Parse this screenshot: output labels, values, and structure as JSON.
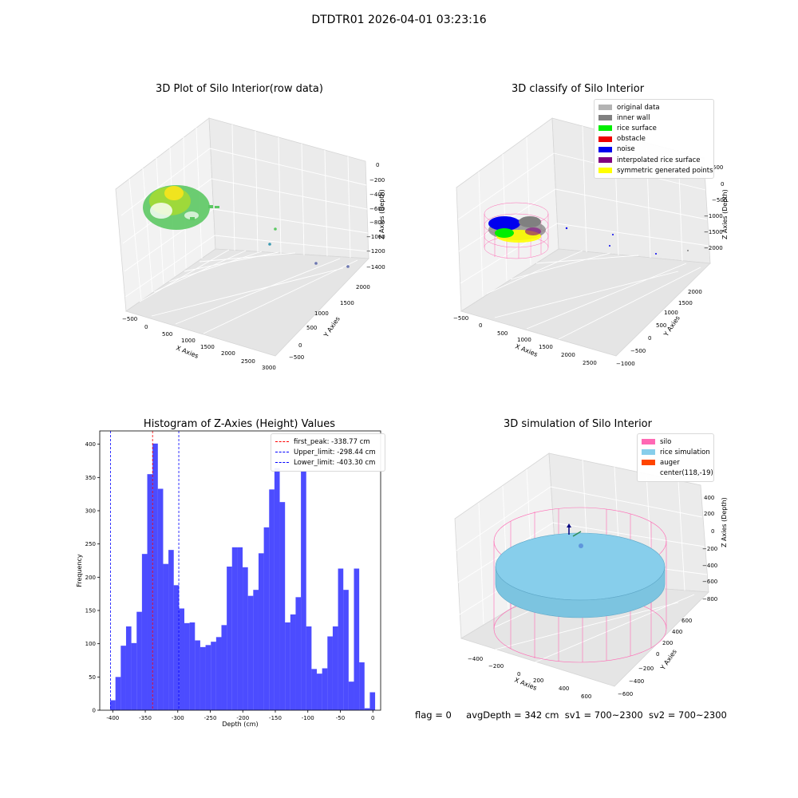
{
  "suptitle": "DTDTR01 2026-04-01 03:23:16",
  "panels": {
    "raw": {
      "title": "3D Plot of Silo Interior(row data)",
      "xlabel": "X Axies",
      "ylabel": "Y Axies",
      "zlabel": "Z Axies (Depth)",
      "xticks": [
        "−500",
        "0",
        "500",
        "1000",
        "1500",
        "2000",
        "2500",
        "3000"
      ],
      "yticks": [
        "−500",
        "0",
        "500",
        "1000",
        "1500",
        "2000"
      ],
      "zticks": [
        "0",
        "−200",
        "−400",
        "−600",
        "−800",
        "−1000",
        "−1200",
        "−1400"
      ],
      "colors": {
        "high": "#f0e41e",
        "low": "#5cc863",
        "outlier": "#3b9ab2"
      }
    },
    "classify": {
      "title": "3D classify of Silo Interior",
      "xlabel": "X Axies",
      "ylabel": "Y Axies",
      "zlabel": "Z Axies (Depth)",
      "xticks": [
        "−500",
        "0",
        "500",
        "1000",
        "1500",
        "2000",
        "2500"
      ],
      "yticks": [
        "−1000",
        "−500",
        "0",
        "500",
        "1000",
        "1500",
        "2000"
      ],
      "zticks": [
        "500",
        "0",
        "−500",
        "−1000",
        "−1500",
        "−2000"
      ],
      "legend": [
        {
          "label": "original data",
          "color": "#b3b3b3"
        },
        {
          "label": "inner wall",
          "color": "#808080"
        },
        {
          "label": "rice surface",
          "color": "#00ee00"
        },
        {
          "label": "obstacle",
          "color": "#ee0000"
        },
        {
          "label": "noise",
          "color": "#0000ee"
        },
        {
          "label": "interpolated rice surface",
          "color": "#800080"
        },
        {
          "label": "symmetric generated points",
          "color": "#ffff00"
        }
      ]
    },
    "histogram": {
      "title": "Histogram of Z-Axies (Height) Values",
      "legend": [
        {
          "label": "first_peak: -338.77 cm",
          "color": "#ff0000"
        },
        {
          "label": "Upper_limit: -298.44 cm",
          "color": "#0000ff"
        },
        {
          "label": "Lower_limit: -403.30 cm",
          "color": "#0000ff"
        }
      ]
    },
    "simulation": {
      "title": "3D simulation of Silo Interior",
      "xlabel": "X Axies",
      "ylabel": "Y Axies",
      "zlabel": "Z Axies (Depth)",
      "xticks": [
        "−400",
        "−200",
        "0",
        "200",
        "400",
        "600"
      ],
      "yticks": [
        "−600",
        "−400",
        "−200",
        "0",
        "200",
        "400",
        "600"
      ],
      "zticks": [
        "400",
        "200",
        "0",
        "−200",
        "−400",
        "−600",
        "−800"
      ],
      "legend": [
        {
          "label": "silo",
          "color": "#ff69b4"
        },
        {
          "label": "rice simulation",
          "color": "#87ceeb"
        },
        {
          "label": "auger",
          "color": "#ff4500"
        },
        {
          "label": "center(118,-19)",
          "color": ""
        }
      ]
    }
  },
  "chart_data": {
    "type": "bar",
    "title": "Histogram of Z-Axies (Height) Values",
    "xlabel": "Depth (cm)",
    "ylabel": "Frequency",
    "xlim": [
      -420,
      12
    ],
    "ylim": [
      0,
      420
    ],
    "xticks": [
      -400,
      -350,
      -300,
      -250,
      -200,
      -150,
      -100,
      -50,
      0
    ],
    "yticks": [
      0,
      50,
      100,
      150,
      200,
      250,
      300,
      350,
      400
    ],
    "bar_color": "#0000ff",
    "bin_start": -404,
    "bin_width": 8.15,
    "values": [
      15,
      50,
      97,
      126,
      101,
      148,
      235,
      355,
      401,
      333,
      220,
      241,
      188,
      153,
      131,
      132,
      105,
      95,
      98,
      103,
      110,
      128,
      216,
      245,
      245,
      215,
      172,
      181,
      236,
      275,
      332,
      364,
      313,
      132,
      144,
      170,
      359,
      126,
      62,
      55,
      63,
      111,
      126,
      213,
      181,
      43,
      213,
      72,
      3,
      27
    ],
    "lines": [
      {
        "name": "first_peak: -338.77 cm",
        "x": -338.77,
        "color": "#ff0000"
      },
      {
        "name": "Upper_limit: -298.44 cm",
        "x": -298.44,
        "color": "#0000ff"
      },
      {
        "name": "Lower_limit: -403.30 cm",
        "x": -403.3,
        "color": "#0000ff"
      }
    ],
    "legend_position": "upper right"
  },
  "status": {
    "flag": "flag = 0",
    "avg_depth": "avgDepth = 342 cm",
    "sv1": "sv1 = 700~2300",
    "sv2": "sv2 = 700~2300"
  }
}
